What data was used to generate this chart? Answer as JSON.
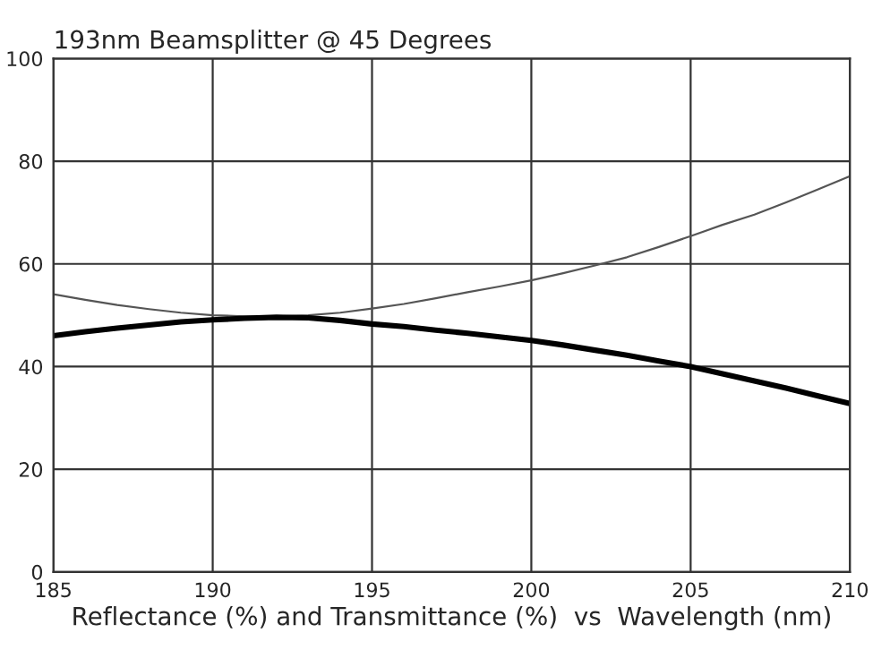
{
  "chart_data": {
    "type": "line",
    "title": "193nm Beamsplitter @ 45 Degrees",
    "xlabel": "Reflectance (%) and Transmittance (%)  vs  Wavelength (nm)",
    "series": [
      {
        "color": "#555555",
        "x": [
          185,
          186,
          187,
          188,
          189,
          190,
          191,
          192,
          193,
          194,
          195,
          196,
          197,
          198,
          199,
          200,
          201,
          202,
          203,
          204,
          205,
          206,
          207,
          208,
          209,
          210
        ],
        "values": [
          54.1,
          53.0,
          52.0,
          51.2,
          50.5,
          50.0,
          49.8,
          49.8,
          50.0,
          50.5,
          51.3,
          52.2,
          53.3,
          54.5,
          55.6,
          56.8,
          58.2,
          59.7,
          61.3,
          63.3,
          65.4,
          67.6,
          69.6,
          72.0,
          74.5,
          77.1
        ]
      },
      {
        "color": "#000000",
        "x": [
          185,
          186,
          187,
          188,
          189,
          190,
          191,
          192,
          193,
          194,
          195,
          196,
          197,
          198,
          199,
          200,
          201,
          202,
          203,
          204,
          205,
          206,
          207,
          208,
          209,
          210
        ],
        "values": [
          46.0,
          46.8,
          47.5,
          48.1,
          48.7,
          49.1,
          49.4,
          49.6,
          49.5,
          49.0,
          48.3,
          47.8,
          47.1,
          46.5,
          45.8,
          45.1,
          44.2,
          43.2,
          42.2,
          41.1,
          40.0,
          38.6,
          37.2,
          35.8,
          34.3,
          32.8
        ]
      }
    ],
    "xlim": [
      185,
      210
    ],
    "xticks": [
      185,
      190,
      195,
      200,
      205,
      210
    ],
    "ylim": [
      0,
      100
    ],
    "yticks": [
      0,
      20,
      40,
      60,
      80,
      100
    ],
    "grid": true,
    "marker": "none",
    "line_style": "solid"
  }
}
